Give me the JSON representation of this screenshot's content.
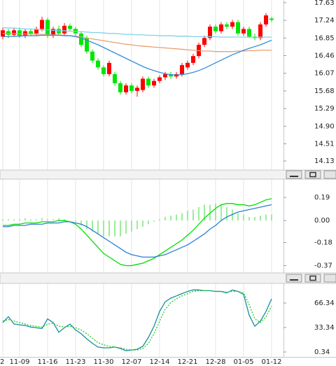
{
  "chart_data": [
    {
      "type": "candlestick",
      "up_color": "#ff0000",
      "down_color": "#00e600",
      "open": [
        16.88,
        17.0,
        16.92,
        17.02,
        16.9,
        17.0,
        16.95,
        17.05,
        17.25,
        16.9,
        17.05,
        16.95,
        17.12,
        17.05,
        16.95,
        16.85,
        16.55,
        16.35,
        16.2,
        16.05,
        16.05,
        15.85,
        15.65,
        15.8,
        15.68,
        15.7,
        15.95,
        15.8,
        15.9,
        15.98,
        16.05,
        16.0,
        16.05,
        16.2,
        16.3,
        16.45,
        16.7,
        16.85,
        17.1,
        17.0,
        17.15,
        17.1,
        17.2,
        16.95,
        17.05,
        16.88,
        16.85,
        17.15,
        17.28
      ],
      "high": [
        17.08,
        17.05,
        17.07,
        17.08,
        17.05,
        17.05,
        17.1,
        17.32,
        17.3,
        17.1,
        17.12,
        17.18,
        17.17,
        17.1,
        17.0,
        16.9,
        16.6,
        16.4,
        16.25,
        16.35,
        16.1,
        15.9,
        15.85,
        15.85,
        15.8,
        16.0,
        16.0,
        15.95,
        16.02,
        16.1,
        16.1,
        16.1,
        16.3,
        16.35,
        16.5,
        16.75,
        16.9,
        17.15,
        17.15,
        17.2,
        17.2,
        17.25,
        17.25,
        17.1,
        17.1,
        16.95,
        17.2,
        17.4,
        17.32
      ],
      "low": [
        16.82,
        16.85,
        16.87,
        16.85,
        16.85,
        16.9,
        16.9,
        17.0,
        16.85,
        16.85,
        16.9,
        16.9,
        17.0,
        16.9,
        16.65,
        16.5,
        16.3,
        16.15,
        16.0,
        16.0,
        15.8,
        15.6,
        15.6,
        15.62,
        15.55,
        15.65,
        15.75,
        15.75,
        15.85,
        15.92,
        15.95,
        15.95,
        16.0,
        16.15,
        16.25,
        16.4,
        16.65,
        16.8,
        16.95,
        16.95,
        17.05,
        17.05,
        16.9,
        16.9,
        16.85,
        16.8,
        16.8,
        17.1,
        17.2
      ],
      "close": [
        17.02,
        16.92,
        17.02,
        16.9,
        17.0,
        16.95,
        17.05,
        17.25,
        16.9,
        17.05,
        16.95,
        17.12,
        17.05,
        16.95,
        16.7,
        16.55,
        16.35,
        16.2,
        16.05,
        16.3,
        15.85,
        15.65,
        15.8,
        15.68,
        15.75,
        15.95,
        15.8,
        15.9,
        15.98,
        16.05,
        16.0,
        16.05,
        16.25,
        16.3,
        16.45,
        16.7,
        16.85,
        17.1,
        17.0,
        17.15,
        17.1,
        17.2,
        16.95,
        17.05,
        16.88,
        16.85,
        17.15,
        17.35,
        17.25
      ],
      "series": [
        {
          "color": "#7fd3e8",
          "values": [
            17.08,
            17.07,
            17.07,
            17.06,
            17.05,
            17.05,
            17.04,
            17.03,
            17.03,
            17.02,
            17.01,
            17.01,
            17.0,
            16.99,
            16.99,
            16.98,
            16.97,
            16.97,
            16.96,
            16.95,
            16.95,
            16.94,
            16.93,
            16.93,
            16.92,
            16.92,
            16.91,
            16.91,
            16.9,
            16.9,
            16.9,
            16.89,
            16.89,
            16.89,
            16.88,
            16.88,
            16.88,
            16.88,
            16.88,
            16.87,
            16.87,
            16.87,
            16.87,
            16.87,
            16.87,
            16.87,
            16.87,
            16.87,
            16.87
          ]
        },
        {
          "color": "#e8a070",
          "values": [
            16.95,
            16.95,
            16.95,
            16.94,
            16.94,
            16.94,
            16.93,
            16.93,
            16.93,
            16.92,
            16.92,
            16.91,
            16.9,
            16.89,
            16.87,
            16.85,
            16.83,
            16.81,
            16.79,
            16.77,
            16.75,
            16.73,
            16.71,
            16.7,
            16.68,
            16.67,
            16.66,
            16.65,
            16.64,
            16.63,
            16.62,
            16.61,
            16.6,
            16.59,
            16.58,
            16.57,
            16.56,
            16.56,
            16.55,
            16.55,
            16.55,
            16.55,
            16.56,
            16.56,
            16.57,
            16.57,
            16.58,
            16.58,
            16.58
          ]
        },
        {
          "color": "#2f8fe0",
          "values": [
            16.88,
            16.88,
            16.89,
            16.89,
            16.9,
            16.9,
            16.9,
            16.91,
            16.91,
            16.91,
            16.91,
            16.9,
            16.9,
            16.88,
            16.85,
            16.8,
            16.75,
            16.7,
            16.64,
            16.58,
            16.52,
            16.46,
            16.4,
            16.34,
            16.28,
            16.22,
            16.17,
            16.13,
            16.09,
            16.06,
            16.04,
            16.03,
            16.04,
            16.06,
            16.09,
            16.13,
            16.18,
            16.24,
            16.3,
            16.36,
            16.42,
            16.48,
            16.53,
            16.58,
            16.62,
            16.66,
            16.7,
            16.75,
            16.8
          ]
        }
      ],
      "ylim": [
        13.93,
        17.69
      ],
      "yticks": [
        17.63,
        17.24,
        16.85,
        16.46,
        16.07,
        15.68,
        15.29,
        {
          "value": 14.9,
          "label": "14.90"
        },
        14.51,
        14.13
      ]
    },
    {
      "type": "macd",
      "histogram_color": "#33dd33",
      "histogram": [
        0.01,
        0.01,
        0.01,
        0.01,
        0.02,
        0.01,
        0.01,
        0.02,
        0.01,
        0.01,
        0.02,
        0.01,
        0.0,
        -0.01,
        -0.04,
        -0.07,
        -0.09,
        -0.11,
        -0.13,
        -0.13,
        -0.13,
        -0.13,
        -0.11,
        -0.09,
        -0.07,
        -0.05,
        -0.03,
        -0.01,
        0.01,
        0.03,
        0.04,
        0.05,
        0.06,
        0.08,
        0.09,
        0.11,
        0.13,
        0.13,
        0.14,
        0.13,
        0.11,
        0.09,
        0.06,
        0.05,
        0.03,
        0.03,
        0.04,
        0.05,
        0.05
      ],
      "series": [
        {
          "color": "#00e000",
          "values": [
            -0.04,
            -0.04,
            -0.03,
            -0.03,
            -0.02,
            -0.02,
            -0.02,
            -0.01,
            -0.01,
            -0.01,
            0.0,
            0.0,
            -0.01,
            -0.03,
            -0.07,
            -0.12,
            -0.17,
            -0.22,
            -0.27,
            -0.3,
            -0.33,
            -0.36,
            -0.37,
            -0.37,
            -0.36,
            -0.35,
            -0.33,
            -0.31,
            -0.28,
            -0.25,
            -0.22,
            -0.19,
            -0.16,
            -0.12,
            -0.08,
            -0.03,
            0.02,
            0.06,
            0.1,
            0.13,
            0.14,
            0.14,
            0.13,
            0.13,
            0.12,
            0.13,
            0.15,
            0.17,
            0.18
          ]
        },
        {
          "color": "#2a7fd4",
          "values": [
            -0.05,
            -0.05,
            -0.04,
            -0.04,
            -0.04,
            -0.03,
            -0.03,
            -0.03,
            -0.02,
            -0.02,
            -0.02,
            -0.01,
            -0.01,
            -0.02,
            -0.03,
            -0.05,
            -0.08,
            -0.11,
            -0.14,
            -0.17,
            -0.2,
            -0.23,
            -0.26,
            -0.28,
            -0.29,
            -0.3,
            -0.3,
            -0.3,
            -0.29,
            -0.28,
            -0.26,
            -0.24,
            -0.22,
            -0.2,
            -0.17,
            -0.14,
            -0.11,
            -0.07,
            -0.04,
            0.0,
            0.03,
            0.05,
            0.07,
            0.08,
            0.09,
            0.1,
            0.11,
            0.12,
            0.13
          ]
        }
      ],
      "ylim": [
        -0.43,
        0.34
      ],
      "yticks": [
        0.19,
        {
          "value": 0,
          "label": "0.00"
        },
        -0.18,
        -0.37
      ]
    },
    {
      "type": "line",
      "categories": [
        "2",
        null,
        null,
        "11-09",
        null,
        null,
        null,
        null,
        "11-16",
        null,
        null,
        null,
        null,
        "11-23",
        null,
        null,
        null,
        null,
        "11-30",
        null,
        null,
        null,
        null,
        "12-07",
        null,
        null,
        null,
        null,
        "12-14",
        null,
        null,
        null,
        null,
        "12-21",
        null,
        null,
        null,
        null,
        "12-28",
        null,
        null,
        null,
        null,
        "01-05",
        null,
        null,
        null,
        null,
        "01-12"
      ],
      "series": [
        {
          "color": "#1a8ca0",
          "values": [
            40,
            48,
            38,
            37,
            36,
            34,
            33,
            32,
            45,
            40,
            27,
            33,
            38,
            30,
            25,
            18,
            12,
            7,
            6,
            6,
            7,
            5,
            2,
            3,
            4,
            8,
            20,
            35,
            55,
            68,
            73,
            76,
            79,
            82,
            84,
            84,
            83,
            83,
            82,
            82,
            80,
            84,
            82,
            78,
            50,
            35,
            42,
            55,
            72
          ]
        },
        {
          "color": "#22cc22",
          "line_style": "dotted",
          "values": [
            42,
            44,
            42,
            40,
            38,
            36,
            35,
            34,
            38,
            39,
            35,
            34,
            35,
            33,
            30,
            25,
            19,
            13,
            10,
            8,
            7,
            6,
            4,
            3,
            3,
            5,
            12,
            25,
            42,
            58,
            67,
            72,
            76,
            79,
            82,
            83,
            83,
            83,
            82,
            82,
            81,
            82,
            82,
            80,
            64,
            45,
            40,
            48,
            62
          ]
        }
      ],
      "ylim": [
        -6.3,
        92.8
      ],
      "yticks": [
        66.34,
        33.34,
        0.34
      ]
    }
  ]
}
